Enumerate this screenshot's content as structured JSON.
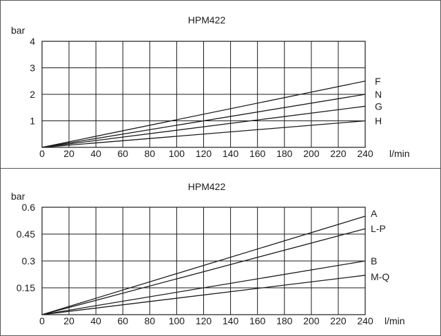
{
  "chart_data": [
    {
      "type": "line",
      "title": "HPM422",
      "ylabel": "bar",
      "xlabel": "l/min",
      "xlim": [
        0,
        240
      ],
      "ylim": [
        0,
        4
      ],
      "xticks": [
        "0",
        "20",
        "40",
        "60",
        "80",
        "100",
        "120",
        "140",
        "160",
        "180",
        "200",
        "220",
        "240"
      ],
      "yticks": [
        "1",
        "2",
        "3",
        "4"
      ],
      "grid": true,
      "series": [
        {
          "name": "F",
          "x": [
            0,
            240
          ],
          "y": [
            0,
            2.5
          ]
        },
        {
          "name": "N",
          "x": [
            0,
            240
          ],
          "y": [
            0,
            2.0
          ]
        },
        {
          "name": "G",
          "x": [
            0,
            240
          ],
          "y": [
            0,
            1.55
          ]
        },
        {
          "name": "H",
          "x": [
            0,
            240
          ],
          "y": [
            0,
            1.0
          ]
        }
      ]
    },
    {
      "type": "line",
      "title": "HPM422",
      "ylabel": "bar",
      "xlabel": "l/min",
      "xlim": [
        0,
        240
      ],
      "ylim": [
        0,
        0.6
      ],
      "xticks": [
        "0",
        "20",
        "40",
        "60",
        "80",
        "100",
        "120",
        "140",
        "160",
        "180",
        "200",
        "220",
        "240"
      ],
      "yticks": [
        "0.15",
        "0.3",
        "0.45",
        "0.6"
      ],
      "grid": true,
      "series": [
        {
          "name": "A",
          "x": [
            0,
            240
          ],
          "y": [
            0,
            0.55
          ]
        },
        {
          "name": "L-P",
          "x": [
            0,
            240
          ],
          "y": [
            0,
            0.48
          ]
        },
        {
          "name": "B",
          "x": [
            0,
            240
          ],
          "y": [
            0,
            0.3
          ]
        },
        {
          "name": "M-Q",
          "x": [
            0,
            240
          ],
          "y": [
            0,
            0.22
          ]
        }
      ]
    }
  ]
}
